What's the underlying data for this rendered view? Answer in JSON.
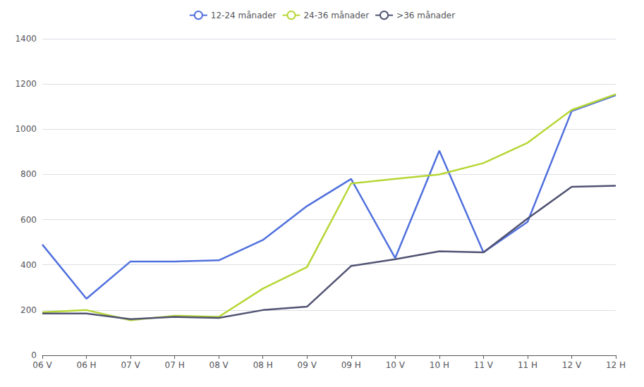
{
  "chart_data": {
    "type": "line",
    "categories": [
      "06 V",
      "06 H",
      "07 V",
      "07 H",
      "08 V",
      "08 H",
      "09 V",
      "09 H",
      "10 V",
      "10 H",
      "11 V",
      "11 H",
      "12 V",
      "12 H"
    ],
    "series": [
      {
        "name": "12-24 månader",
        "values": [
          490,
          250,
          415,
          415,
          420,
          510,
          660,
          780,
          430,
          905,
          455,
          590,
          1080,
          1150
        ]
      },
      {
        "name": "24-36 månader",
        "values": [
          190,
          200,
          155,
          175,
          170,
          295,
          390,
          760,
          780,
          800,
          850,
          940,
          1085,
          1155
        ]
      },
      {
        "name": ">36 månader",
        "values": [
          185,
          185,
          160,
          170,
          165,
          200,
          215,
          395,
          425,
          460,
          455,
          605,
          745,
          750
        ]
      }
    ],
    "ylim": [
      0,
      1400
    ],
    "yticks": [
      0,
      200,
      400,
      600,
      800,
      1000,
      1200,
      1400
    ],
    "grid": true,
    "legend": "top"
  }
}
